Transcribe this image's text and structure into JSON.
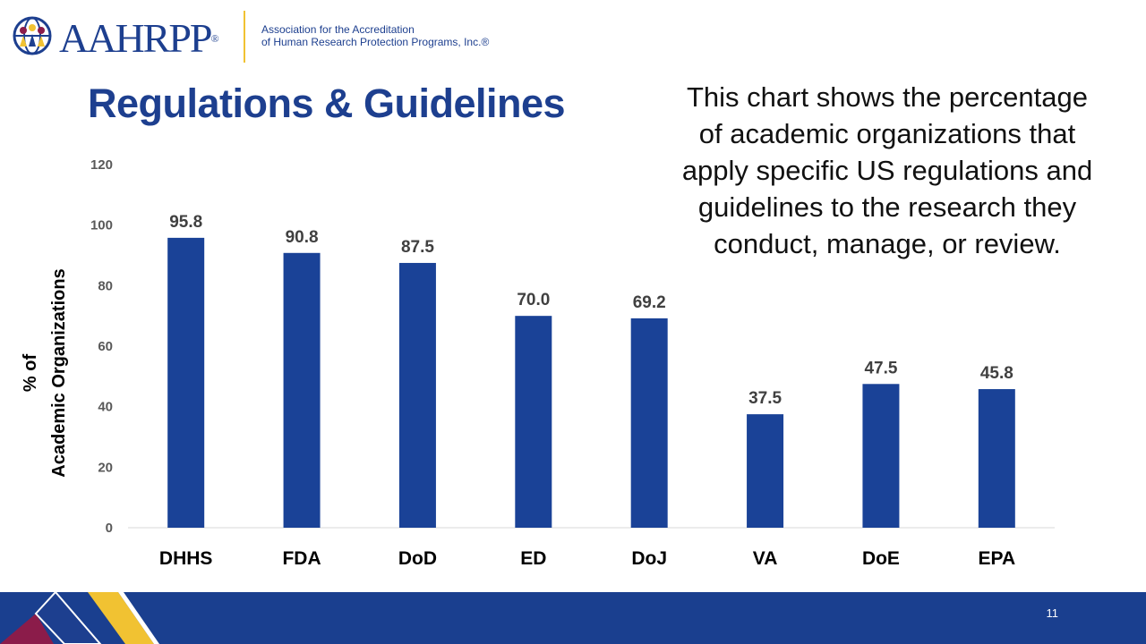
{
  "header": {
    "logo_text": "AAHRPP",
    "registered_mark": "®",
    "assoc_line1": "Association for the Accreditation",
    "assoc_line2": "of Human Research Protection Programs, Inc.®",
    "colors": {
      "brand_blue": "#1d3f8f",
      "gold": "#f1c232",
      "maroon": "#8b1c4a"
    }
  },
  "slide": {
    "title": "Regulations & Guidelines",
    "description_lines": [
      "This chart shows the percentage",
      "of academic organizations that",
      "apply specific US regulations and",
      "guidelines to the research they",
      "conduct, manage, or review."
    ],
    "page_number": "11"
  },
  "chart_data": {
    "type": "bar",
    "title": "",
    "xlabel": "",
    "ylabel_lines": [
      "% of",
      "Academic Organizations"
    ],
    "categories": [
      "DHHS",
      "FDA",
      "DoD",
      "ED",
      "DoJ",
      "VA",
      "DoE",
      "EPA"
    ],
    "values": [
      95.8,
      90.8,
      87.5,
      70.0,
      69.2,
      37.5,
      47.5,
      45.8
    ],
    "value_labels": [
      "95.8",
      "90.8",
      "87.5",
      "70.0",
      "69.2",
      "37.5",
      "47.5",
      "45.8"
    ],
    "ylim": [
      0,
      120
    ],
    "yticks": [
      0,
      20,
      40,
      60,
      80,
      100,
      120
    ],
    "grid": false,
    "bar_color": "#1a4297"
  }
}
